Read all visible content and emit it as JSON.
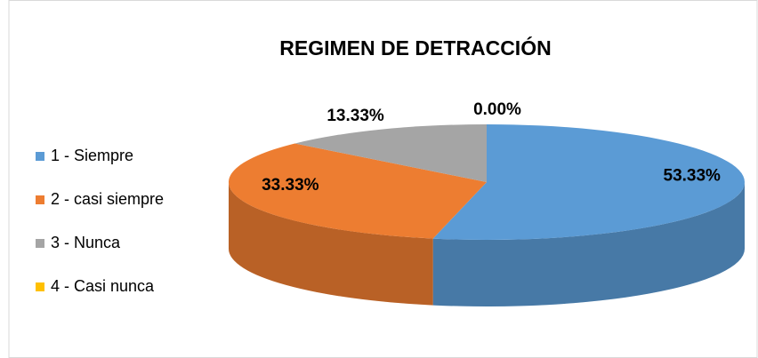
{
  "chart_data": {
    "type": "pie",
    "title": "REGIMEN DE DETRACCIÓN",
    "categories": [
      "1 - Siempre",
      "2 - casi siempre",
      "3 - Nunca",
      "4 - Casi nunca"
    ],
    "values": [
      53.33,
      33.33,
      13.33,
      0
    ],
    "value_labels": [
      "53.33%",
      "33.33%",
      "13.33%",
      "0.00%"
    ],
    "colors": [
      "#5b9bd5",
      "#ed7d31",
      "#a5a5a5",
      "#ffc000"
    ],
    "legend": "left"
  }
}
